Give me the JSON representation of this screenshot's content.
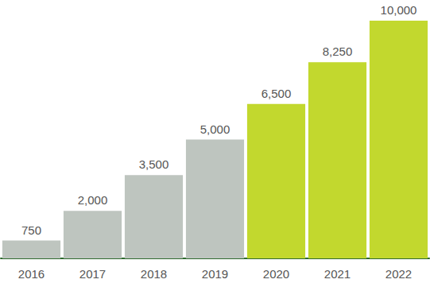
{
  "chart_data": {
    "type": "bar",
    "categories": [
      "2016",
      "2017",
      "2018",
      "2019",
      "2020",
      "2021",
      "2022"
    ],
    "values": [
      750,
      2000,
      3500,
      5000,
      6500,
      8250,
      10000
    ],
    "value_labels": [
      "750",
      "2,000",
      "3,500",
      "5,000",
      "6,500",
      "8,250",
      "10,000"
    ],
    "colors": [
      "#bec5bf",
      "#bec5bf",
      "#bec5bf",
      "#bec5bf",
      "#c2d82e",
      "#c2d82e",
      "#c2d82e"
    ],
    "ylim": [
      0,
      10000
    ],
    "data_labels": true,
    "tick_labels": "x",
    "grid": false
  }
}
